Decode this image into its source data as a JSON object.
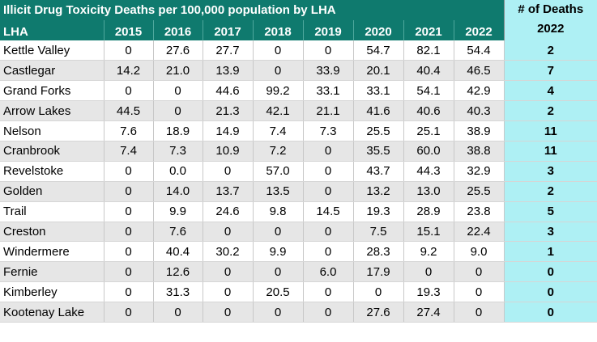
{
  "title": "Illicit Drug Toxicity Deaths per 100,000 population by LHA",
  "headers": {
    "lha": "LHA",
    "years": [
      "2015",
      "2016",
      "2017",
      "2018",
      "2019",
      "2020",
      "2021",
      "2022"
    ],
    "deaths_line1": "# of Deaths",
    "deaths_line2": "2022"
  },
  "rows": [
    {
      "lha": "Kettle Valley",
      "values": [
        "0",
        "27.6",
        "27.7",
        "0",
        "0",
        "54.7",
        "82.1",
        "54.4"
      ],
      "deaths": "2"
    },
    {
      "lha": "Castlegar",
      "values": [
        "14.2",
        "21.0",
        "13.9",
        "0",
        "33.9",
        "20.1",
        "40.4",
        "46.5"
      ],
      "deaths": "7"
    },
    {
      "lha": "Grand Forks",
      "values": [
        "0",
        "0",
        "44.6",
        "99.2",
        "33.1",
        "33.1",
        "54.1",
        "42.9"
      ],
      "deaths": "4"
    },
    {
      "lha": "Arrow Lakes",
      "values": [
        "44.5",
        "0",
        "21.3",
        "42.1",
        "21.1",
        "41.6",
        "40.6",
        "40.3"
      ],
      "deaths": "2"
    },
    {
      "lha": "Nelson",
      "values": [
        "7.6",
        "18.9",
        "14.9",
        "7.4",
        "7.3",
        "25.5",
        "25.1",
        "38.9"
      ],
      "deaths": "11"
    },
    {
      "lha": "Cranbrook",
      "values": [
        "7.4",
        "7.3",
        "10.9",
        "7.2",
        "0",
        "35.5",
        "60.0",
        "38.8"
      ],
      "deaths": "11"
    },
    {
      "lha": "Revelstoke",
      "values": [
        "0",
        "0.0",
        "0",
        "57.0",
        "0",
        "43.7",
        "44.3",
        "32.9"
      ],
      "deaths": "3"
    },
    {
      "lha": "Golden",
      "values": [
        "0",
        "14.0",
        "13.7",
        "13.5",
        "0",
        "13.2",
        "13.0",
        "25.5"
      ],
      "deaths": "2"
    },
    {
      "lha": "Trail",
      "values": [
        "0",
        "9.9",
        "24.6",
        "9.8",
        "14.5",
        "19.3",
        "28.9",
        "23.8"
      ],
      "deaths": "5"
    },
    {
      "lha": "Creston",
      "values": [
        "0",
        "7.6",
        "0",
        "0",
        "0",
        "7.5",
        "15.1",
        "22.4"
      ],
      "deaths": "3"
    },
    {
      "lha": "Windermere",
      "values": [
        "0",
        "40.4",
        "30.2",
        "9.9",
        "0",
        "28.3",
        "9.2",
        "9.0"
      ],
      "deaths": "1"
    },
    {
      "lha": "Fernie",
      "values": [
        "0",
        "12.6",
        "0",
        "0",
        "6.0",
        "17.9",
        "0",
        "0"
      ],
      "deaths": "0"
    },
    {
      "lha": "Kimberley",
      "values": [
        "0",
        "31.3",
        "0",
        "20.5",
        "0",
        "0",
        "19.3",
        "0"
      ],
      "deaths": "0"
    },
    {
      "lha": "Kootenay Lake",
      "values": [
        "0",
        "0",
        "0",
        "0",
        "0",
        "27.6",
        "27.4",
        "0"
      ],
      "deaths": "0"
    }
  ]
}
